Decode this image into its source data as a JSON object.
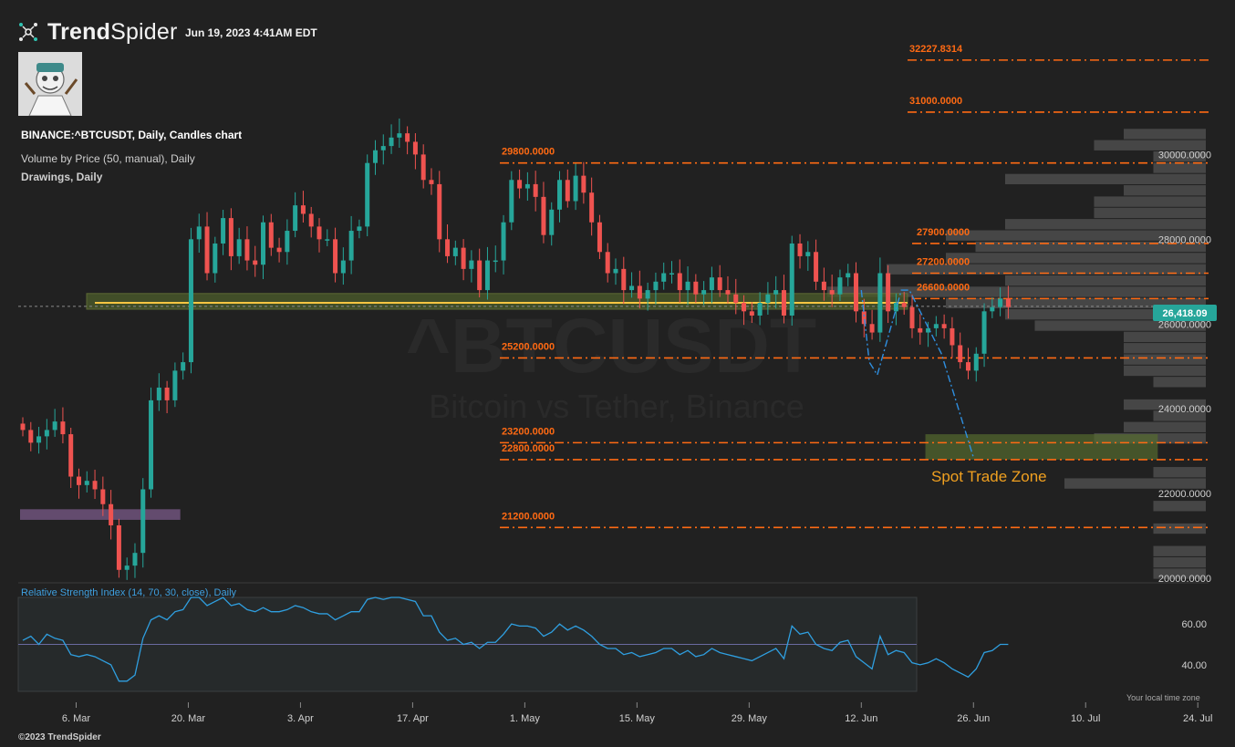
{
  "header": {
    "brand_strong": "Trend",
    "brand_light": "Spider",
    "timestamp": "Jun 19, 2023 4:41AM EDT"
  },
  "info": {
    "chart_title": "BINANCE:^BTCUSDT, Daily, Candles chart",
    "vbp_label": "Volume by Price (50, manual), Daily",
    "drawings_label": "Drawings, Daily"
  },
  "watermark": {
    "symbol": "^BTCUSDT",
    "description": "Bitcoin vs Tether, Binance"
  },
  "annotation": {
    "zone_label": "Spot Trade Zone"
  },
  "price_tag": "26,418.09",
  "footer": {
    "copyright": "©2023 TrendSpider",
    "timezone_note": "Your local time zone"
  },
  "colors": {
    "background": "#212121",
    "bull": "#26a69a",
    "bear": "#ef5350",
    "level_line": "#ff6a13",
    "support_line": "#f5c542",
    "support_zone": "#4a5a2a",
    "spot_zone": "#556b2f",
    "purple_zone": "#7a5a88",
    "rsi_line": "#2f9fe0",
    "projection": "#2f8fe0",
    "vbp": "#4c4c4c",
    "price_tag": "#26a69a"
  },
  "chart_data": {
    "type": "candlestick",
    "symbol": "BINANCE:^BTCUSDT",
    "interval": "Daily",
    "y_range": [
      19700,
      33000
    ],
    "y_ticks": [
      "30000.0000",
      "28000.0000",
      "26000.0000",
      "24000.0000",
      "22000.0000",
      "20000.0000"
    ],
    "x_ticks": [
      "6. Mar",
      "20. Mar",
      "3. Apr",
      "17. Apr",
      "1. May",
      "15. May",
      "29. May",
      "12. Jun",
      "26. Jun",
      "10. Jul",
      "24. Jul"
    ],
    "x_range_dates": [
      "2023-02-27",
      "2023-07-25"
    ],
    "last_price": 26418.09,
    "levels": [
      {
        "label": "32227.8314",
        "value": 32227.8314
      },
      {
        "label": "31000.0000",
        "value": 31000
      },
      {
        "label": "29800.0000",
        "value": 29800
      },
      {
        "label": "27900.0000",
        "value": 27900
      },
      {
        "label": "27200.0000",
        "value": 27200
      },
      {
        "label": "26600.0000",
        "value": 26600
      },
      {
        "label": "25200.0000",
        "value": 25200
      },
      {
        "label": "23200.0000",
        "value": 23200
      },
      {
        "label": "22800.0000",
        "value": 22800
      },
      {
        "label": "21200.0000",
        "value": 21200
      }
    ],
    "support_line": 26500,
    "support_zone": [
      26350,
      26720
    ],
    "spot_trade_zone": {
      "from": "2023-06-20",
      "to": "2023-07-19",
      "low": 22800,
      "high": 23400
    },
    "purple_zone": {
      "from": "2023-02-27",
      "to": "2023-03-19",
      "low": 21380,
      "high": 21630
    },
    "projection": [
      [
        "2023-06-12",
        26800
      ],
      [
        "2023-06-13",
        25100
      ],
      [
        "2023-06-14",
        24800
      ],
      [
        "2023-06-17",
        26800
      ],
      [
        "2023-06-18",
        26800
      ],
      [
        "2023-06-22",
        25300
      ],
      [
        "2023-06-26",
        22850
      ]
    ],
    "closes": [
      23500,
      23200,
      23350,
      23500,
      23700,
      23400,
      22400,
      22200,
      22300,
      22100,
      21750,
      21250,
      20200,
      20300,
      20600,
      22100,
      24200,
      24500,
      24200,
      24900,
      25100,
      28000,
      28300,
      27200,
      27900,
      28500,
      27600,
      28000,
      27500,
      27400,
      28400,
      27800,
      27700,
      28200,
      28800,
      28600,
      28300,
      28000,
      28000,
      27200,
      27500,
      28200,
      28300,
      29800,
      30100,
      30200,
      30400,
      30500,
      30300,
      30000,
      29400,
      29300,
      28000,
      27600,
      27800,
      27300,
      27500,
      26800,
      27500,
      27500,
      28400,
      29400,
      29200,
      29300,
      29000,
      28100,
      28700,
      29400,
      28900,
      29500,
      29100,
      28400,
      27700,
      27200,
      27300,
      26800,
      26900,
      26600,
      26800,
      27000,
      27200,
      27200,
      26800,
      27000,
      26700,
      26800,
      27100,
      26800,
      26700,
      26500,
      26300,
      26200,
      26500,
      26700,
      26800,
      26200,
      27900,
      27600,
      27700,
      27000,
      26800,
      26700,
      27100,
      27200,
      26300,
      26000,
      25800,
      27200,
      26300,
      26500,
      26400,
      25900,
      25800,
      25900,
      26000,
      25900,
      25500,
      25100,
      24900,
      25300,
      26300,
      26400,
      26600,
      26400
    ],
    "rsi": {
      "label": "Relative Strength Index (14, 70, 30, close), Daily",
      "y_range": [
        27,
        73
      ],
      "y_ticks": [
        "60.00",
        "40.00"
      ],
      "levels": [
        70,
        50,
        30
      ],
      "values": [
        52,
        54,
        50,
        55,
        53,
        52,
        45,
        44,
        45,
        44,
        42,
        40,
        32,
        32,
        35,
        53,
        62,
        64,
        62,
        66,
        67,
        73,
        73,
        69,
        71,
        73,
        69,
        70,
        67,
        66,
        68,
        66,
        66,
        67,
        69,
        68,
        66,
        65,
        65,
        62,
        64,
        66,
        66,
        72,
        73,
        72,
        73,
        73,
        72,
        71,
        64,
        64,
        56,
        52,
        53,
        50,
        51,
        48,
        51,
        51,
        55,
        60,
        59,
        59,
        58,
        54,
        56,
        60,
        57,
        59,
        57,
        54,
        50,
        48,
        48,
        45,
        46,
        44,
        45,
        46,
        48,
        48,
        45,
        47,
        44,
        45,
        48,
        46,
        45,
        44,
        43,
        42,
        44,
        46,
        48,
        43,
        59,
        55,
        56,
        50,
        48,
        47,
        51,
        52,
        44,
        41,
        38,
        54,
        45,
        47,
        46,
        41,
        40,
        41,
        43,
        41,
        38,
        36,
        34,
        38,
        46,
        47,
        50,
        50
      ],
      "values_dates_note": "",
      "x_range_dates": [
        "2023-02-27",
        "2023-06-19"
      ]
    }
  }
}
